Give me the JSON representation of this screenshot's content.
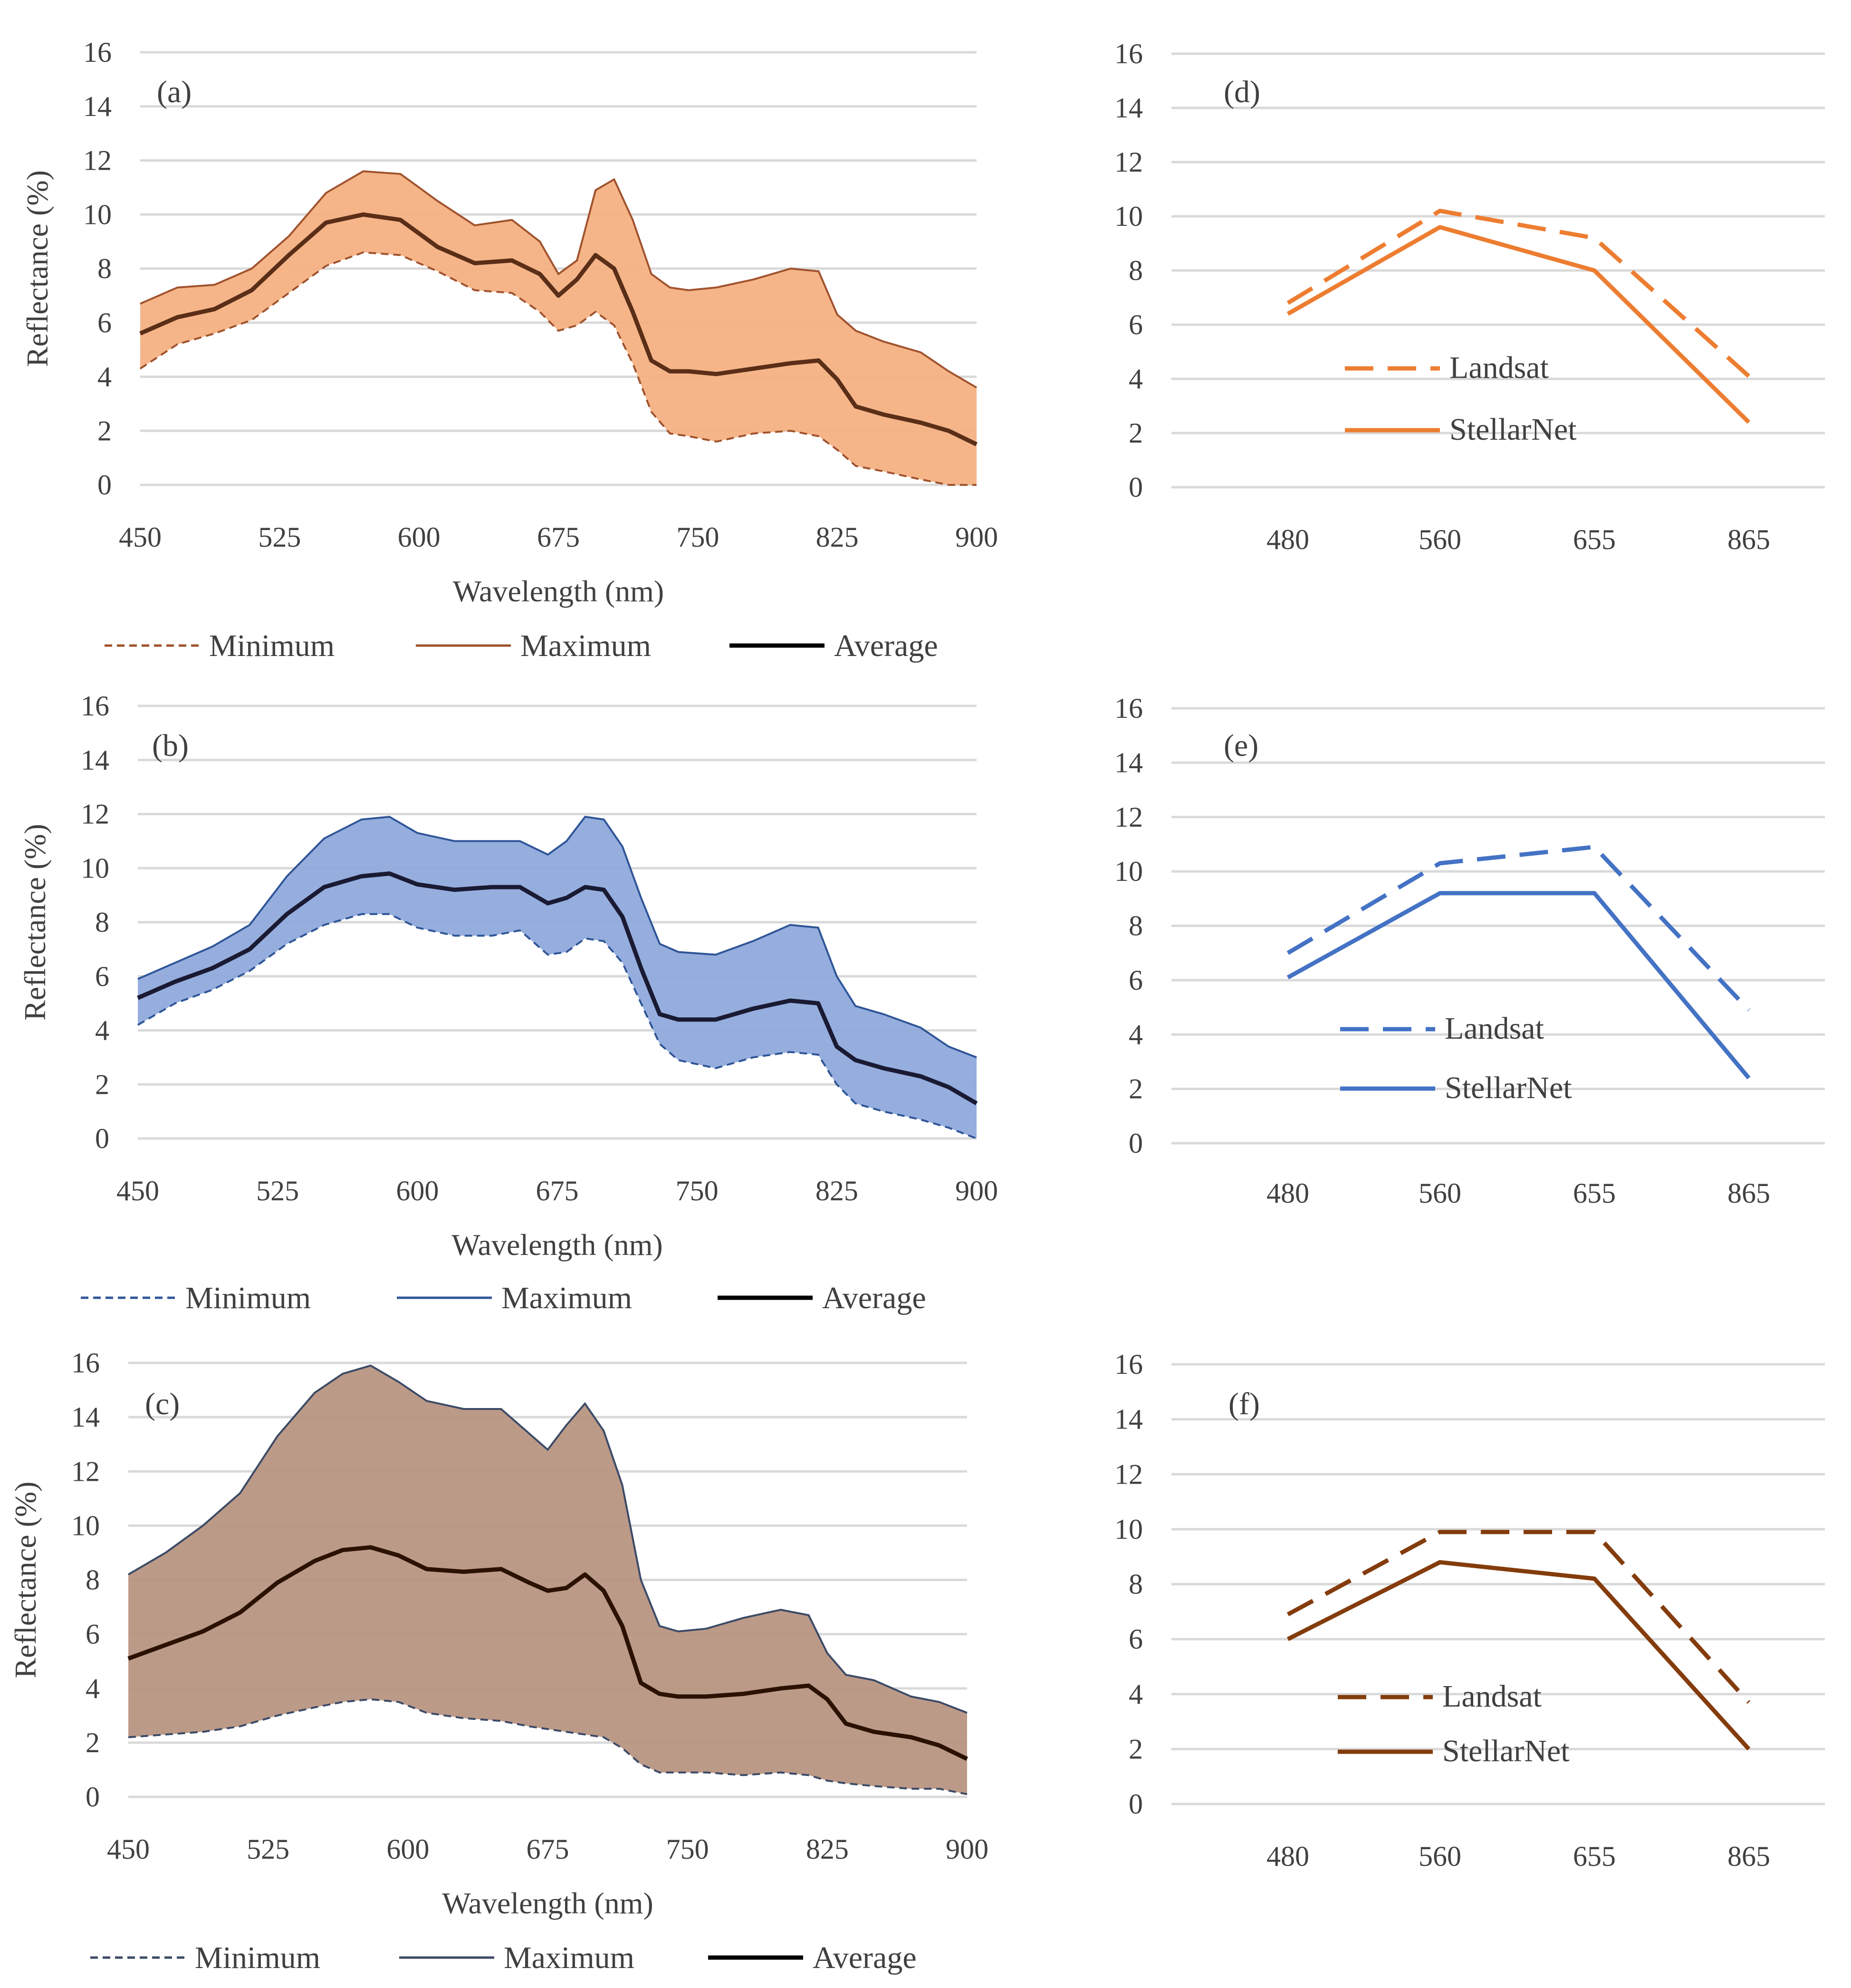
{
  "chart_data": [
    {
      "panel": "(a)",
      "type": "area",
      "color": "#ED7D31",
      "fill": "#F4B183",
      "minColor": "#A0522D",
      "maxColor": "#A0522D",
      "avgColor": "#5A2E17",
      "xlabel": "Wavelength (nm)",
      "ylabel": "Reflectance (%)",
      "xlim": [
        450,
        900
      ],
      "ylim": [
        0,
        16
      ],
      "xticks": [
        "450",
        "525",
        "600",
        "675",
        "750",
        "825",
        "900"
      ],
      "yticks": [
        "0",
        "2",
        "4",
        "6",
        "8",
        "10",
        "12",
        "14",
        "16"
      ],
      "x": [
        450,
        470,
        490,
        510,
        530,
        550,
        570,
        590,
        610,
        630,
        650,
        665,
        675,
        685,
        695,
        705,
        715,
        725,
        735,
        745,
        760,
        780,
        800,
        815,
        825,
        835,
        850,
        870,
        885,
        900
      ],
      "series": [
        {
          "name": "Minimum",
          "values": [
            4.3,
            5.2,
            5.6,
            6.1,
            7.1,
            8.1,
            8.6,
            8.5,
            7.9,
            7.2,
            7.1,
            6.4,
            5.7,
            5.9,
            6.4,
            5.9,
            4.5,
            2.7,
            1.9,
            1.8,
            1.6,
            1.9,
            2.0,
            1.8,
            1.3,
            0.7,
            0.5,
            0.2,
            0.0,
            0.0
          ]
        },
        {
          "name": "Maximum",
          "values": [
            6.7,
            7.3,
            7.4,
            8.0,
            9.2,
            10.8,
            11.6,
            11.5,
            10.5,
            9.6,
            9.8,
            9.0,
            7.8,
            8.3,
            10.9,
            11.3,
            9.8,
            7.8,
            7.3,
            7.2,
            7.3,
            7.6,
            8.0,
            7.9,
            6.3,
            5.7,
            5.3,
            4.9,
            4.2,
            3.6
          ]
        },
        {
          "name": "Average",
          "values": [
            5.6,
            6.2,
            6.5,
            7.2,
            8.5,
            9.7,
            10.0,
            9.8,
            8.8,
            8.2,
            8.3,
            7.8,
            7.0,
            7.6,
            8.5,
            8.0,
            6.4,
            4.6,
            4.2,
            4.2,
            4.1,
            4.3,
            4.5,
            4.6,
            3.9,
            2.9,
            2.6,
            2.3,
            2.0,
            1.5
          ]
        }
      ],
      "legend": [
        "Minimum",
        "Maximum",
        "Average"
      ]
    },
    {
      "panel": "(b)",
      "type": "area",
      "color": "#4472C4",
      "fill": "#8FAADC",
      "minColor": "#2F5597",
      "maxColor": "#2F5597",
      "avgColor": "#1A1A33",
      "xlabel": "Wavelength (nm)",
      "ylabel": "Reflectance (%)",
      "xlim": [
        450,
        900
      ],
      "ylim": [
        0,
        16
      ],
      "xticks": [
        "450",
        "525",
        "600",
        "675",
        "750",
        "825",
        "900"
      ],
      "yticks": [
        "0",
        "2",
        "4",
        "6",
        "8",
        "10",
        "12",
        "14",
        "16"
      ],
      "x": [
        450,
        470,
        490,
        510,
        530,
        550,
        570,
        585,
        600,
        620,
        640,
        655,
        670,
        680,
        690,
        700,
        710,
        720,
        730,
        740,
        760,
        780,
        800,
        815,
        825,
        835,
        850,
        870,
        885,
        900
      ],
      "series": [
        {
          "name": "Minimum",
          "values": [
            4.2,
            5.0,
            5.5,
            6.2,
            7.2,
            7.9,
            8.3,
            8.3,
            7.8,
            7.5,
            7.5,
            7.7,
            6.8,
            6.9,
            7.4,
            7.3,
            6.5,
            5.0,
            3.5,
            2.9,
            2.6,
            3.0,
            3.2,
            3.1,
            2.0,
            1.3,
            1.0,
            0.7,
            0.4,
            0.0
          ]
        },
        {
          "name": "Maximum",
          "values": [
            5.9,
            6.5,
            7.1,
            7.9,
            9.7,
            11.1,
            11.8,
            11.9,
            11.3,
            11.0,
            11.0,
            11.0,
            10.5,
            11.0,
            11.9,
            11.8,
            10.8,
            8.9,
            7.2,
            6.9,
            6.8,
            7.3,
            7.9,
            7.8,
            6.0,
            4.9,
            4.6,
            4.1,
            3.4,
            3.0
          ]
        },
        {
          "name": "Average",
          "values": [
            5.2,
            5.8,
            6.3,
            7.0,
            8.3,
            9.3,
            9.7,
            9.8,
            9.4,
            9.2,
            9.3,
            9.3,
            8.7,
            8.9,
            9.3,
            9.2,
            8.2,
            6.3,
            4.6,
            4.4,
            4.4,
            4.8,
            5.1,
            5.0,
            3.4,
            2.9,
            2.6,
            2.3,
            1.9,
            1.3
          ]
        }
      ],
      "legend": [
        "Minimum",
        "Maximum",
        "Average"
      ]
    },
    {
      "panel": "(c)",
      "type": "area",
      "color": "#843C0C",
      "fill": "#B89582",
      "minColor": "#3B4A66",
      "maxColor": "#3B4A66",
      "avgColor": "#2B1200",
      "xlabel": "Wavelength (nm)",
      "ylabel": "Reflectance (%)",
      "xlim": [
        450,
        900
      ],
      "ylim": [
        0,
        16
      ],
      "xticks": [
        "450",
        "525",
        "600",
        "675",
        "750",
        "825",
        "900"
      ],
      "yticks": [
        "0",
        "2",
        "4",
        "6",
        "8",
        "10",
        "12",
        "14",
        "16"
      ],
      "x": [
        450,
        470,
        490,
        510,
        530,
        550,
        565,
        580,
        595,
        610,
        630,
        650,
        665,
        675,
        685,
        695,
        705,
        715,
        725,
        735,
        745,
        760,
        780,
        800,
        815,
        825,
        835,
        850,
        870,
        885,
        900
      ],
      "series": [
        {
          "name": "Minimum",
          "values": [
            2.2,
            2.3,
            2.4,
            2.6,
            3.0,
            3.3,
            3.5,
            3.6,
            3.5,
            3.1,
            2.9,
            2.8,
            2.6,
            2.5,
            2.4,
            2.3,
            2.2,
            1.8,
            1.2,
            0.9,
            0.9,
            0.9,
            0.8,
            0.9,
            0.8,
            0.6,
            0.5,
            0.4,
            0.3,
            0.3,
            0.1
          ]
        },
        {
          "name": "Maximum",
          "values": [
            8.2,
            9.0,
            10.0,
            11.2,
            13.3,
            14.9,
            15.6,
            15.9,
            15.3,
            14.6,
            14.3,
            14.3,
            13.4,
            12.8,
            13.7,
            14.5,
            13.5,
            11.5,
            8.0,
            6.3,
            6.1,
            6.2,
            6.6,
            6.9,
            6.7,
            5.3,
            4.5,
            4.3,
            3.7,
            3.5,
            3.1
          ]
        },
        {
          "name": "Average",
          "values": [
            5.1,
            5.6,
            6.1,
            6.8,
            7.9,
            8.7,
            9.1,
            9.2,
            8.9,
            8.4,
            8.3,
            8.4,
            7.9,
            7.6,
            7.7,
            8.2,
            7.6,
            6.3,
            4.2,
            3.8,
            3.7,
            3.7,
            3.8,
            4.0,
            4.1,
            3.6,
            2.7,
            2.4,
            2.2,
            1.9,
            1.4
          ]
        }
      ],
      "legend": [
        "Minimum",
        "Maximum",
        "Average"
      ]
    },
    {
      "panel": "(d)",
      "type": "line",
      "color": "#ED7D31",
      "categories": [
        "480",
        "560",
        "655",
        "865"
      ],
      "ylim": [
        0,
        16
      ],
      "yticks": [
        "0",
        "2",
        "4",
        "6",
        "8",
        "10",
        "12",
        "14",
        "16"
      ],
      "series": [
        {
          "name": "Landsat",
          "dash": true,
          "values": [
            6.8,
            10.2,
            9.2,
            4.1
          ]
        },
        {
          "name": "StellarNet",
          "dash": false,
          "values": [
            6.4,
            9.6,
            8.0,
            2.4
          ]
        }
      ],
      "legend": [
        "Landsat",
        "StellarNet"
      ]
    },
    {
      "panel": "(e)",
      "type": "line",
      "color": "#4472C4",
      "categories": [
        "480",
        "560",
        "655",
        "865"
      ],
      "ylim": [
        0,
        16
      ],
      "yticks": [
        "0",
        "2",
        "4",
        "6",
        "8",
        "10",
        "12",
        "14",
        "16"
      ],
      "series": [
        {
          "name": "Landsat",
          "dash": true,
          "values": [
            7.0,
            10.3,
            10.9,
            4.9
          ]
        },
        {
          "name": "StellarNet",
          "dash": false,
          "values": [
            6.1,
            9.2,
            9.2,
            2.4
          ]
        }
      ],
      "legend": [
        "Landsat",
        "StellarNet"
      ]
    },
    {
      "panel": "(f)",
      "type": "line",
      "color": "#843C0C",
      "categories": [
        "480",
        "560",
        "655",
        "865"
      ],
      "ylim": [
        0,
        16
      ],
      "yticks": [
        "0",
        "2",
        "4",
        "6",
        "8",
        "10",
        "12",
        "14",
        "16"
      ],
      "series": [
        {
          "name": "Landsat",
          "dash": true,
          "values": [
            6.9,
            9.9,
            9.9,
            3.7
          ]
        },
        {
          "name": "StellarNet",
          "dash": false,
          "values": [
            6.0,
            8.8,
            8.2,
            2.0
          ]
        }
      ],
      "legend": [
        "Landsat",
        "StellarNet"
      ]
    }
  ]
}
